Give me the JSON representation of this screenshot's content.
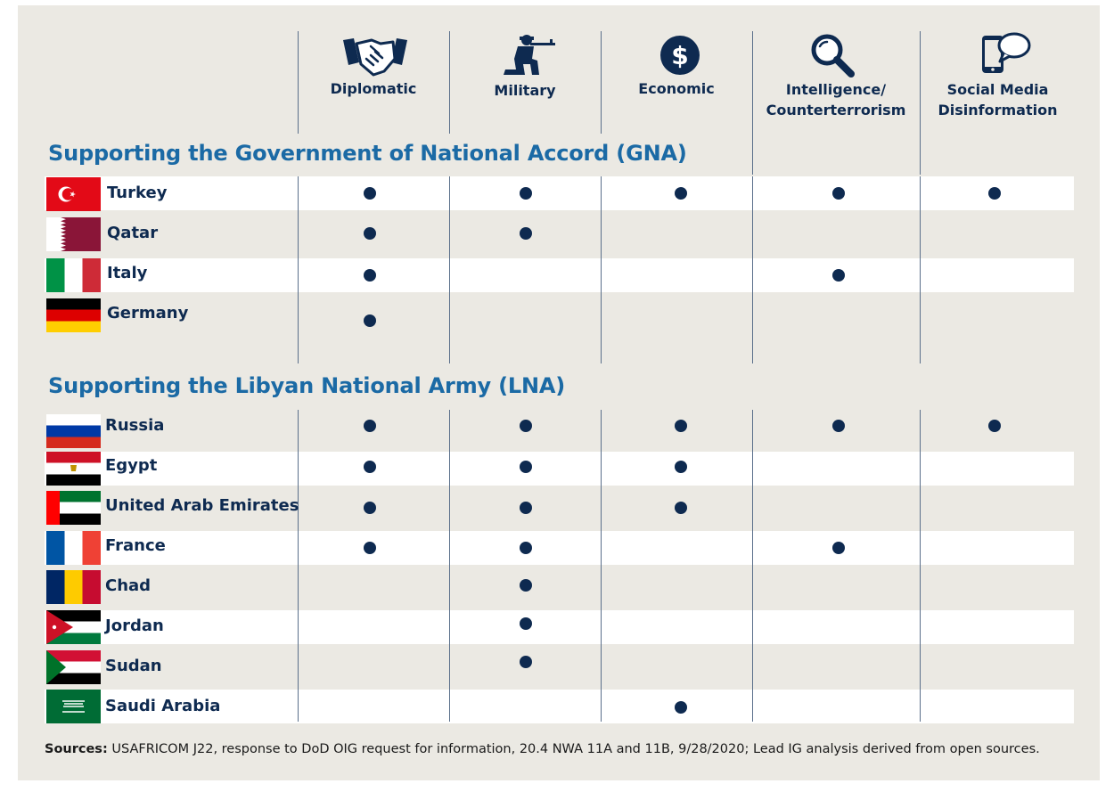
{
  "columns": [
    {
      "label_lines": [
        "Diplomatic"
      ],
      "icon": "handshake-icon"
    },
    {
      "label_lines": [
        "Military"
      ],
      "icon": "soldier-icon"
    },
    {
      "label_lines": [
        "Economic"
      ],
      "icon": "dollar-icon"
    },
    {
      "label_lines": [
        "Intelligence/",
        "Counterterrorism"
      ],
      "icon": "magnifier-icon"
    },
    {
      "label_lines": [
        "Social Media",
        "Disinformation"
      ],
      "icon": "phone-chat-icon"
    }
  ],
  "sections": [
    {
      "title": "Supporting the Government of National Accord (GNA)",
      "rows": [
        {
          "country": "Turkey",
          "marks": [
            true,
            true,
            true,
            true,
            true
          ]
        },
        {
          "country": "Qatar",
          "marks": [
            true,
            true,
            false,
            false,
            false
          ]
        },
        {
          "country": "Italy",
          "marks": [
            true,
            false,
            false,
            true,
            false
          ]
        },
        {
          "country": "Germany",
          "marks": [
            true,
            false,
            false,
            false,
            false
          ]
        }
      ]
    },
    {
      "title": "Supporting the Libyan National Army (LNA)",
      "rows": [
        {
          "country": "Russia",
          "marks": [
            true,
            true,
            true,
            true,
            true
          ]
        },
        {
          "country": "Egypt",
          "marks": [
            true,
            true,
            true,
            false,
            false
          ]
        },
        {
          "country": "United Arab Emirates",
          "marks": [
            true,
            true,
            true,
            false,
            false
          ]
        },
        {
          "country": "France",
          "marks": [
            true,
            true,
            false,
            true,
            false
          ]
        },
        {
          "country": "Chad",
          "marks": [
            false,
            true,
            false,
            false,
            false
          ]
        },
        {
          "country": "Jordan",
          "marks": [
            false,
            true,
            false,
            false,
            false
          ]
        },
        {
          "country": "Sudan",
          "marks": [
            false,
            true,
            false,
            false,
            false
          ]
        },
        {
          "country": "Saudi Arabia",
          "marks": [
            false,
            false,
            true,
            false,
            false
          ]
        }
      ]
    }
  ],
  "sources": {
    "label": "Sources:",
    "text": "USAFRICOM J22, response to DoD OIG request for information, 20.4 NWA 11A and 11B, 9/28/2020; Lead IG analysis derived from open sources."
  },
  "colors": {
    "panel": "#ebe9e3",
    "navy": "#0e2a50",
    "section_blue": "#1b6aa5",
    "band": "#ffffff"
  }
}
